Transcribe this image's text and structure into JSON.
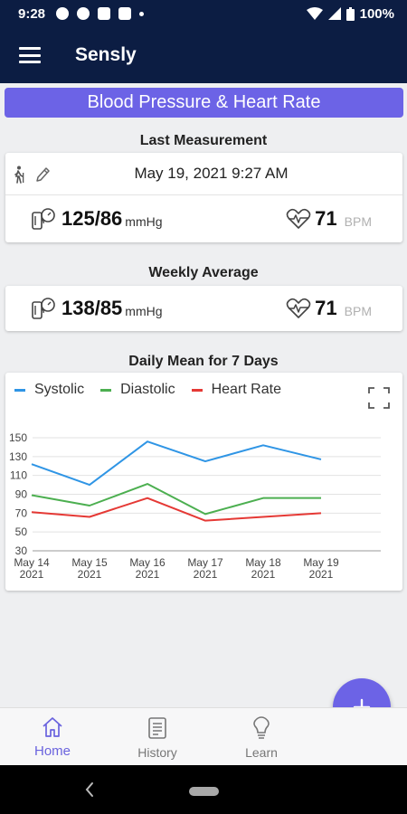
{
  "status_bar": {
    "time": "9:28",
    "battery": "100%"
  },
  "app_bar": {
    "title": "Sensly"
  },
  "banner": {
    "title": "Blood Pressure & Heart Rate"
  },
  "last_measurement": {
    "heading": "Last Measurement",
    "datetime": "May 19, 2021 9:27 AM",
    "bp": "125/86",
    "bp_unit": "mmHg",
    "hr": "71",
    "hr_unit": "BPM"
  },
  "weekly_average": {
    "heading": "Weekly Average",
    "bp": "138/85",
    "bp_unit": "mmHg",
    "hr": "71",
    "hr_unit": "BPM"
  },
  "daily_mean": {
    "heading": "Daily Mean for 7 Days"
  },
  "chart_data": {
    "type": "line",
    "x": [
      "May 14 2021",
      "May 15 2021",
      "May 16 2021",
      "May 17 2021",
      "May 18 2021",
      "May 19 2021"
    ],
    "x_tick_lines": [
      [
        "May 14",
        "2021"
      ],
      [
        "May 15",
        "2021"
      ],
      [
        "May 16",
        "2021"
      ],
      [
        "May 17",
        "2021"
      ],
      [
        "May 18",
        "2021"
      ],
      [
        "May 19",
        "2021"
      ]
    ],
    "series": [
      {
        "name": "Systolic",
        "color": "#2f95e5",
        "values": [
          122,
          100,
          146,
          125,
          142,
          127
        ]
      },
      {
        "name": "Diastolic",
        "color": "#4caf50",
        "values": [
          89,
          78,
          101,
          69,
          86,
          86
        ]
      },
      {
        "name": "Heart Rate",
        "color": "#e53935",
        "values": [
          71,
          66,
          86,
          62,
          66,
          70
        ]
      }
    ],
    "yticks": [
      30,
      50,
      70,
      90,
      110,
      130,
      150
    ],
    "ylim": [
      30,
      150
    ],
    "grid": true,
    "legend": "top-left"
  },
  "nav": {
    "home": "Home",
    "history": "History",
    "learn": "Learn"
  },
  "colors": {
    "primary": "#6c63e6",
    "app_bar": "#0c1d43"
  }
}
